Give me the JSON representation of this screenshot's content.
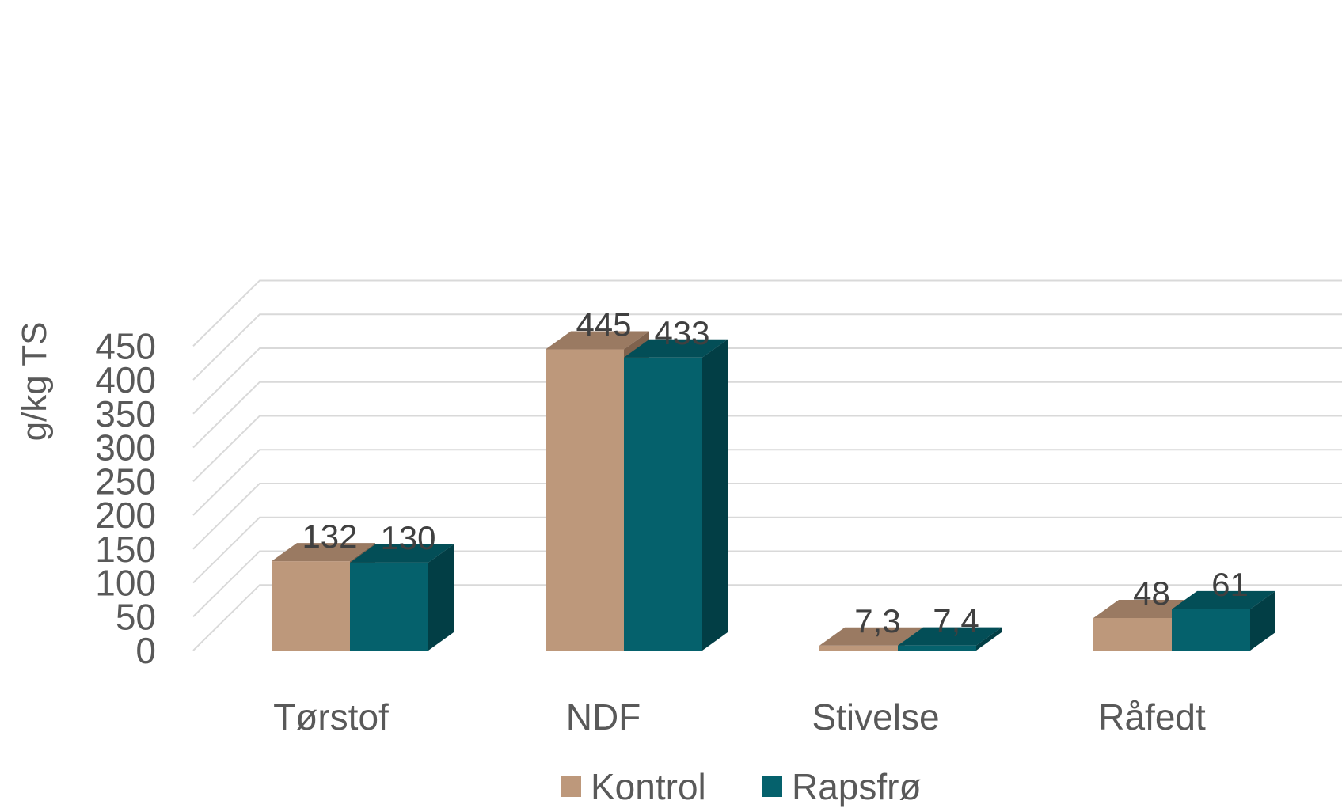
{
  "chart_data": {
    "type": "bar",
    "style": "3d-clustered-column",
    "ylabel": "g/kg TS",
    "ylim": [
      0,
      450
    ],
    "ytick_step": 50,
    "yticks": [
      "0",
      "50",
      "100",
      "150",
      "200",
      "250",
      "300",
      "350",
      "400",
      "450"
    ],
    "grid": true,
    "legend_position": "bottom",
    "categories": [
      "Tørstof",
      "NDF",
      "Stivelse",
      "Råfedt"
    ],
    "series": [
      {
        "name": "Kontrol",
        "values": [
          132,
          445,
          7.3,
          48
        ],
        "labels": [
          "132",
          "445",
          "7,3",
          "48"
        ],
        "color": "#BD987B",
        "top_color": "#9A7A62",
        "side_color": "#7F624D"
      },
      {
        "name": "Rapsfrø",
        "values": [
          130,
          433,
          7.4,
          61
        ],
        "labels": [
          "130",
          "433",
          "7,4",
          "61"
        ],
        "color": "#05616C",
        "top_color": "#034E57",
        "side_color": "#023E45"
      }
    ]
  }
}
